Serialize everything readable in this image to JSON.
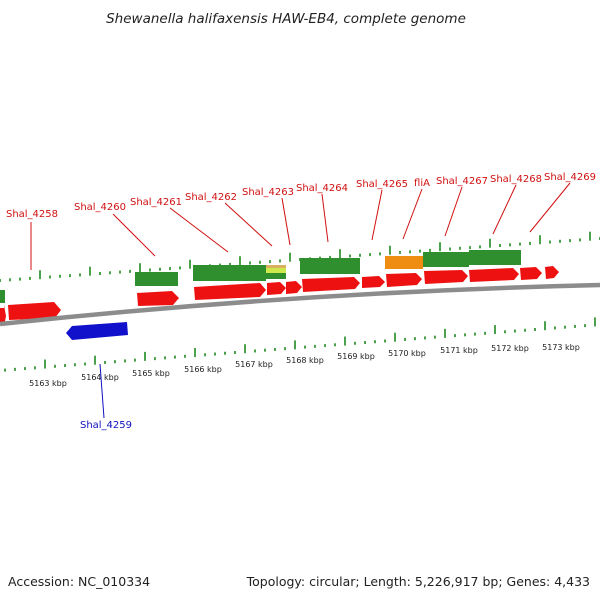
{
  "title": "Shewanella halifaxensis HAW-EB4, complete genome",
  "footer": {
    "accession": "Accession: NC_010334",
    "summary": "Topology: circular; Length: 5,226,917 bp; Genes: 4,433"
  },
  "colors": {
    "backbone": "#8c8c8c",
    "tick": "#1f8a1f",
    "forward_gene": "#ee1111",
    "reverse_gene": "#1111cc",
    "feature_green": "#2f8f2f",
    "feature_orange": "#ef8c12",
    "label_forward": "#d01010",
    "label_reverse": "#1010c0"
  },
  "scale_labels": [
    "5163 kbp",
    "5164 kbp",
    "5165 kbp",
    "5166 kbp",
    "5167 kbp",
    "5168 kbp",
    "5169 kbp",
    "5170 kbp",
    "5171 kbp",
    "5172 kbp",
    "5173 kbp"
  ],
  "gene_labels": [
    {
      "text": "Shal_4258",
      "strand": "forward"
    },
    {
      "text": "Shal_4260",
      "strand": "forward"
    },
    {
      "text": "Shal_4261",
      "strand": "forward"
    },
    {
      "text": "Shal_4262",
      "strand": "forward"
    },
    {
      "text": "Shal_4263",
      "strand": "forward"
    },
    {
      "text": "Shal_4264",
      "strand": "forward"
    },
    {
      "text": "Shal_4265",
      "strand": "forward"
    },
    {
      "text": "fliA",
      "strand": "forward"
    },
    {
      "text": "Shal_4267",
      "strand": "forward"
    },
    {
      "text": "Shal_4268",
      "strand": "forward"
    },
    {
      "text": "Shal_4269",
      "strand": "forward"
    },
    {
      "text": "Shal_4259",
      "strand": "reverse"
    }
  ]
}
